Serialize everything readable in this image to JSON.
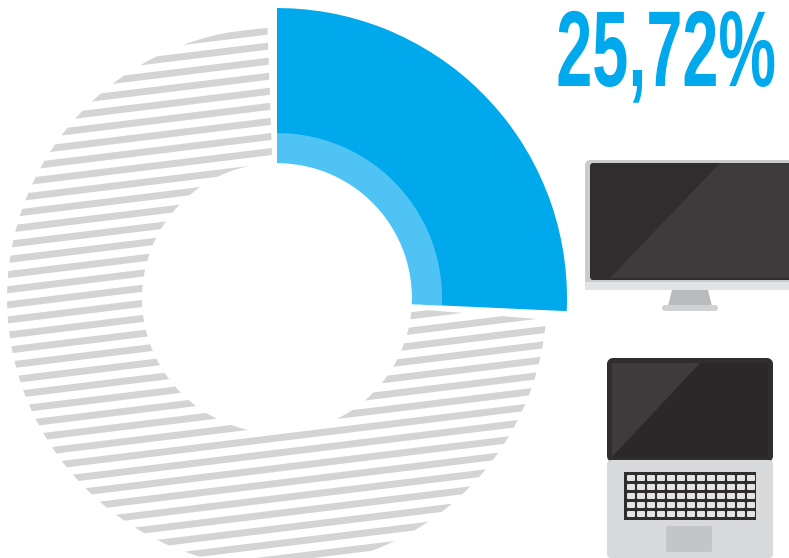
{
  "chart_data": {
    "type": "pie",
    "categories": [
      "25,72%",
      null
    ],
    "values": [
      25.72,
      74.28
    ],
    "value_labels": [
      "25,72%",
      null
    ],
    "colors": [
      "#00a9ec",
      "#d4d4d4"
    ]
  }
}
